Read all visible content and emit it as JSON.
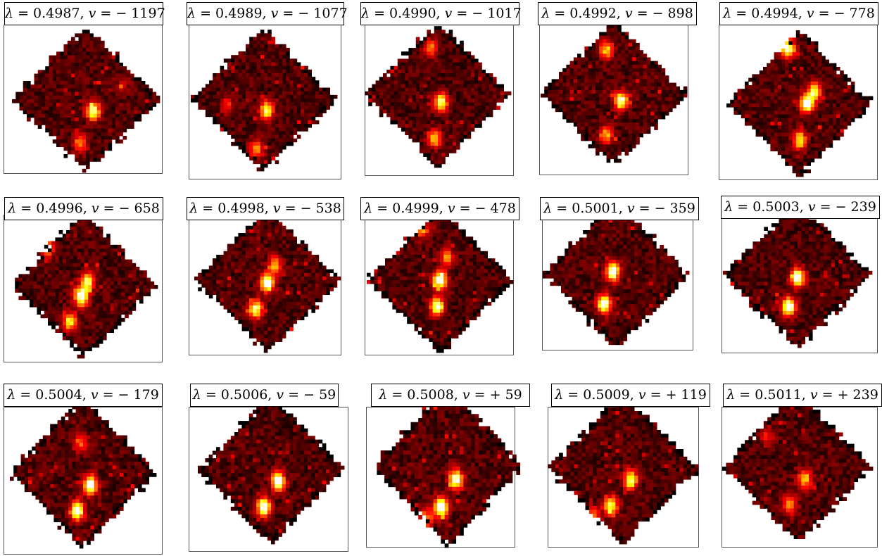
{
  "figure": {
    "colormap": "hot",
    "background": "#ffffff",
    "panels": [
      {
        "lambda": "0.4987",
        "v": "− 1197",
        "seed": 11,
        "blobs": [
          [
            0.55,
            0.58,
            0.9
          ],
          [
            0.46,
            0.8,
            0.5
          ],
          [
            0.75,
            0.4,
            0.2
          ]
        ]
      },
      {
        "lambda": "0.4989",
        "v": "− 1077",
        "seed": 23,
        "blobs": [
          [
            0.52,
            0.58,
            0.8
          ],
          [
            0.45,
            0.85,
            0.5
          ],
          [
            0.25,
            0.55,
            0.3
          ]
        ]
      },
      {
        "lambda": "0.4990",
        "v": "− 1017",
        "seed": 37,
        "blobs": [
          [
            0.52,
            0.55,
            0.85
          ],
          [
            0.48,
            0.8,
            0.6
          ],
          [
            0.45,
            0.18,
            0.5
          ]
        ]
      },
      {
        "lambda": "0.4992",
        "v": "− 898",
        "seed": 41,
        "blobs": [
          [
            0.55,
            0.55,
            0.9
          ],
          [
            0.45,
            0.78,
            0.55
          ],
          [
            0.45,
            0.2,
            0.6
          ]
        ]
      },
      {
        "lambda": "0.4994",
        "v": "− 778",
        "seed": 53,
        "blobs": [
          [
            0.55,
            0.5,
            1.0
          ],
          [
            0.5,
            0.75,
            0.7
          ],
          [
            0.42,
            0.12,
            0.9
          ],
          [
            0.6,
            0.42,
            0.7
          ]
        ]
      },
      {
        "lambda": "0.4996",
        "v": "− 658",
        "seed": 67,
        "blobs": [
          [
            0.48,
            0.58,
            1.0
          ],
          [
            0.52,
            0.48,
            0.8
          ],
          [
            0.4,
            0.75,
            0.7
          ],
          [
            0.35,
            0.08,
            0.85
          ],
          [
            0.25,
            0.25,
            0.5
          ]
        ]
      },
      {
        "lambda": "0.4998",
        "v": "− 538",
        "seed": 71,
        "blobs": [
          [
            0.5,
            0.52,
            1.0
          ],
          [
            0.42,
            0.7,
            0.8
          ],
          [
            0.38,
            0.08,
            0.7
          ],
          [
            0.55,
            0.4,
            0.6
          ]
        ]
      },
      {
        "lambda": "0.4999",
        "v": "− 478",
        "seed": 83,
        "blobs": [
          [
            0.5,
            0.5,
            1.0
          ],
          [
            0.48,
            0.68,
            0.9
          ],
          [
            0.38,
            0.15,
            0.5
          ],
          [
            0.55,
            0.35,
            0.5
          ]
        ]
      },
      {
        "lambda": "0.5001",
        "v": "− 359",
        "seed": 97,
        "blobs": [
          [
            0.48,
            0.48,
            1.0
          ],
          [
            0.42,
            0.7,
            1.0
          ]
        ]
      },
      {
        "lambda": "0.5003",
        "v": "− 239",
        "seed": 101,
        "blobs": [
          [
            0.5,
            0.52,
            1.0
          ],
          [
            0.44,
            0.72,
            1.0
          ]
        ]
      },
      {
        "lambda": "0.5004",
        "v": "− 179",
        "seed": 113,
        "blobs": [
          [
            0.55,
            0.58,
            1.0
          ],
          [
            0.46,
            0.75,
            1.0
          ],
          [
            0.48,
            0.3,
            0.4
          ]
        ]
      },
      {
        "lambda": "0.5006",
        "v": "− 59",
        "seed": 127,
        "blobs": [
          [
            0.55,
            0.58,
            1.0
          ],
          [
            0.45,
            0.75,
            1.0
          ]
        ]
      },
      {
        "lambda": "0.5008",
        "v": "+ 59",
        "seed": 131,
        "blobs": [
          [
            0.55,
            0.58,
            0.9
          ],
          [
            0.45,
            0.75,
            1.0
          ],
          [
            0.35,
            0.82,
            0.5
          ]
        ]
      },
      {
        "lambda": "0.5009",
        "v": "+ 119",
        "seed": 149,
        "blobs": [
          [
            0.55,
            0.58,
            0.8
          ],
          [
            0.42,
            0.75,
            0.8
          ],
          [
            0.3,
            0.82,
            0.5
          ]
        ]
      },
      {
        "lambda": "0.5011",
        "v": "+ 239",
        "seed": 151,
        "blobs": [
          [
            0.55,
            0.58,
            0.6
          ],
          [
            0.45,
            0.75,
            0.5
          ],
          [
            0.3,
            0.3,
            0.3
          ]
        ]
      }
    ]
  }
}
